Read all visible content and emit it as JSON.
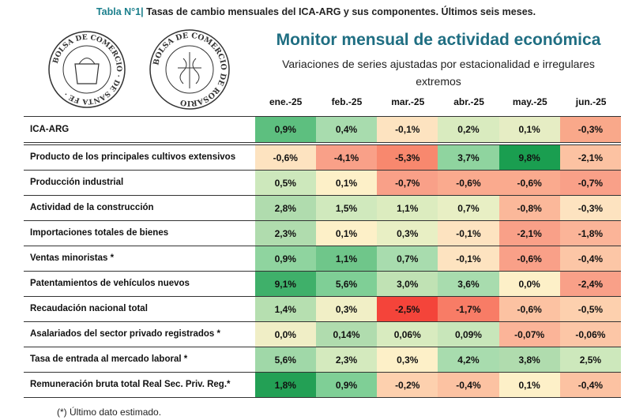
{
  "caption": {
    "tag": "Tabla N°1|",
    "text": " Tasas de cambio mensuales del ICA-ARG y sus componentes. Últimos seis meses."
  },
  "logos": {
    "left": "BOLSA DE COMERCIO DE SANTA FE",
    "right": "BOLSA DE COMERCIO DE ROSARIO"
  },
  "header": {
    "title": "Monitor mensual de actividad económica",
    "subtitle_line1": "Variaciones de series ajustadas por estacionalidad e irregulares",
    "subtitle_line2": "extremos"
  },
  "columns": [
    "ene.-25",
    "feb.-25",
    "mar.-25",
    "abr.-25",
    "may.-25",
    "jun.-25"
  ],
  "rows": [
    {
      "label": "ICA-ARG",
      "values": [
        "0,9%",
        "0,4%",
        "-0,1%",
        "0,2%",
        "0,1%",
        "-0,3%"
      ],
      "colors": [
        "#5dbf7f",
        "#a8dcae",
        "#fde3c0",
        "#d9ebbf",
        "#e6edc4",
        "#f9a88a"
      ]
    },
    {
      "label": "Producto de los principales cultivos extensivos",
      "values": [
        "-0,6%",
        "-4,1%",
        "-5,3%",
        "3,7%",
        "9,8%",
        "-2,1%"
      ],
      "colors": [
        "#fde3c0",
        "#f9a088",
        "#f8886e",
        "#8fd49f",
        "#1a9e50",
        "#fcc2a2"
      ]
    },
    {
      "label": "Producción industrial",
      "values": [
        "0,5%",
        "0,1%",
        "-0,7%",
        "-0,6%",
        "-0,6%",
        "-0,7%"
      ],
      "colors": [
        "#cde8bc",
        "#fdf0c8",
        "#f9a088",
        "#faaa8e",
        "#faaa8e",
        "#f9a088"
      ]
    },
    {
      "label": "Actividad de la construcción",
      "values": [
        "2,8%",
        "1,5%",
        "1,1%",
        "0,7%",
        "-0,8%",
        "-0,3%"
      ],
      "colors": [
        "#b0dcae",
        "#d0e9bd",
        "#dcecbf",
        "#e8efc4",
        "#fbb89a",
        "#fde3c0"
      ]
    },
    {
      "label": "Importaciones totales de bienes",
      "values": [
        "2,3%",
        "0,1%",
        "0,3%",
        "-0,1%",
        "-2,1%",
        "-1,8%"
      ],
      "colors": [
        "#b0dcae",
        "#fdf0c8",
        "#e8efc4",
        "#fde3c0",
        "#f9a088",
        "#fbb498"
      ]
    },
    {
      "label": "Ventas minoristas *",
      "values": [
        "0,9%",
        "1,1%",
        "0,7%",
        "-0,1%",
        "-0,6%",
        "-0,4%"
      ],
      "colors": [
        "#8fd49f",
        "#6fc68a",
        "#a8dcae",
        "#fde3c0",
        "#f9a088",
        "#fcc6a6"
      ]
    },
    {
      "label": "Patentamientos de vehículos nuevos",
      "values": [
        "9,1%",
        "5,6%",
        "3,0%",
        "3,6%",
        "0,0%",
        "-2,4%"
      ],
      "colors": [
        "#3fb06a",
        "#7fcf96",
        "#c0e2b4",
        "#a8dcae",
        "#fdf0c8",
        "#f9a088"
      ]
    },
    {
      "label": "Recaudación nacional total",
      "values": [
        "1,4%",
        "0,3%",
        "-2,5%",
        "-1,7%",
        "-0,6%",
        "-0,5%"
      ],
      "colors": [
        "#b6dfb0",
        "#f1efc6",
        "#f4443a",
        "#f87c66",
        "#fcc2a2",
        "#fdd0ae"
      ]
    },
    {
      "label": "Asalariados del sector privado registrados *",
      "values": [
        "0,0%",
        "0,14%",
        "0,06%",
        "0,09%",
        "-0,07%",
        "-0,06%"
      ],
      "colors": [
        "#f0eec6",
        "#b0dcae",
        "#d8ebbf",
        "#c8e6ba",
        "#fbb498",
        "#fcc6a6"
      ]
    },
    {
      "label": "Tasa de entrada al mercado laboral *",
      "values": [
        "5,6%",
        "2,3%",
        "0,3%",
        "4,2%",
        "3,8%",
        "2,5%"
      ],
      "colors": [
        "#a0d8a8",
        "#d4eabe",
        "#fdf0c8",
        "#a8dcae",
        "#b0dcae",
        "#cde8bc"
      ]
    },
    {
      "label": "Remuneración bruta total Real Sec. Priv. Reg.*",
      "values": [
        "1,8%",
        "0,9%",
        "-0,2%",
        "-0,4%",
        "0,1%",
        "-0,4%"
      ],
      "colors": [
        "#23a055",
        "#7fcf96",
        "#fdd0ae",
        "#fcc2a2",
        "#fdf0c8",
        "#fcc2a2"
      ]
    }
  ],
  "footnote": "(*) Último dato estimado."
}
